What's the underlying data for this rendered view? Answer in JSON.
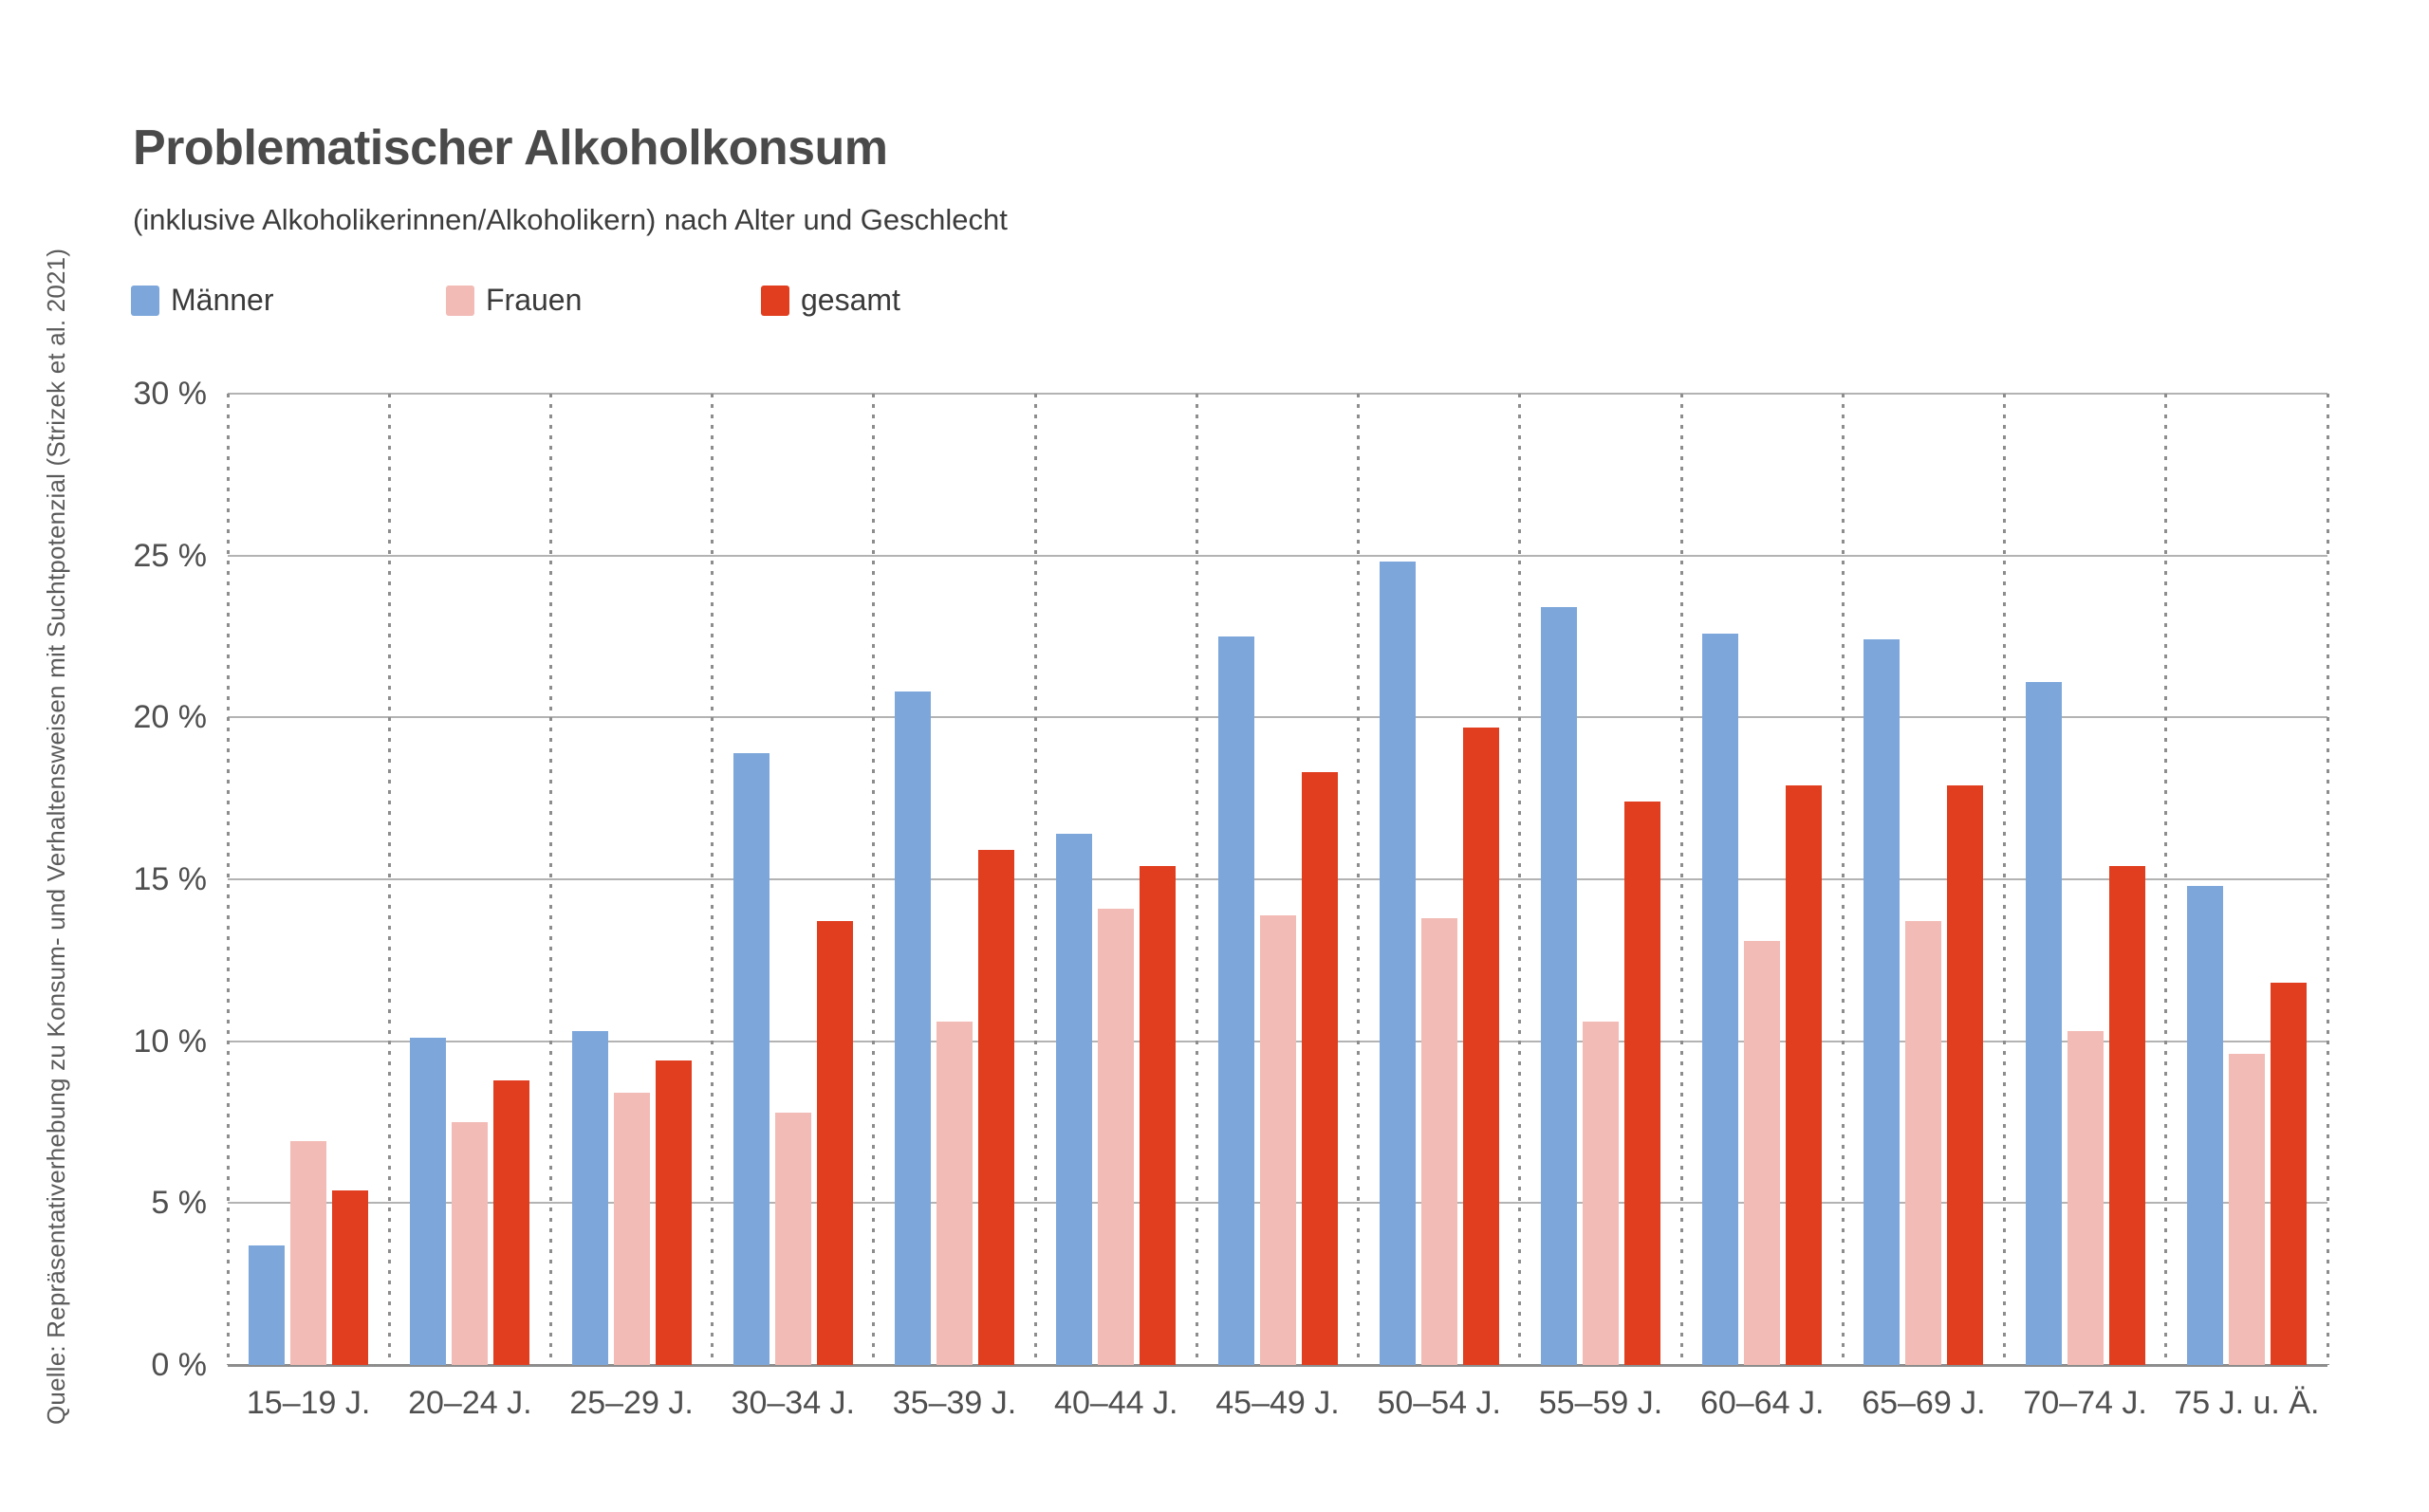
{
  "title": "Problematischer Alkoholkonsum",
  "subtitle": "(inklusive Alkoholikerinnen/Alkoholikern) nach Alter und Geschlecht",
  "source_note": "Quelle: Repräsentativerhebung zu Konsum- und Verhaltensweisen mit Suchtpotenzial (Strizek et al. 2021)",
  "chart_data": {
    "type": "bar",
    "title": "Problematischer Alkoholkonsum",
    "subtitle": "(inklusive Alkoholikerinnen/Alkoholikern) nach Alter und Geschlecht",
    "categories": [
      "15–19 J.",
      "20–24 J.",
      "25–29 J.",
      "30–34 J.",
      "35–39 J.",
      "40–44 J.",
      "45–49 J.",
      "50–54 J.",
      "55–59 J.",
      "60–64 J.",
      "65–69 J.",
      "70–74 J.",
      "75 J. u. Ä."
    ],
    "series": [
      {
        "name": "Männer",
        "color": "#7da7db",
        "values": [
          3.7,
          10.1,
          10.3,
          18.9,
          20.8,
          16.4,
          22.5,
          24.8,
          23.4,
          22.6,
          22.4,
          21.1,
          14.8
        ]
      },
      {
        "name": "Frauen",
        "color": "#f2bbb5",
        "values": [
          6.9,
          7.5,
          8.4,
          7.8,
          10.6,
          14.1,
          13.9,
          13.8,
          10.6,
          13.1,
          13.7,
          10.3,
          9.6
        ]
      },
      {
        "name": "gesamt",
        "color": "#e03e1e",
        "values": [
          5.4,
          8.8,
          9.4,
          13.7,
          15.9,
          15.4,
          18.3,
          19.7,
          17.4,
          17.9,
          17.9,
          15.4,
          11.8
        ]
      }
    ],
    "xlabel": "",
    "ylabel": "",
    "unit": "%",
    "ylim": [
      0,
      30
    ],
    "y_tick_step": 5,
    "y_tick_labels": [
      "0 %",
      "5 %",
      "10 %",
      "15 %",
      "20 %",
      "25 %",
      "30 %"
    ],
    "grid": "horizontal solid lines every 5%, vertical dotted separators between age groups",
    "legend_position": "top-left"
  }
}
